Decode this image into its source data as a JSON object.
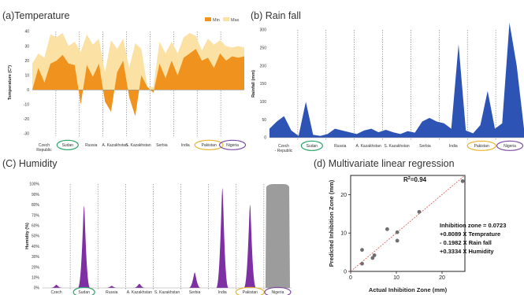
{
  "panel_titles": {
    "a": "(a)Temperature",
    "b": "(b) Rain fall",
    "c": "(C) Humidity",
    "d": "(d) Multivariate linear regression"
  },
  "colors": {
    "temp_min": "#f0921e",
    "temp_max": "#fbe1a3",
    "rain": "#2d53b5",
    "humidity": "#7d2fa3",
    "humidity_nigeria": "#9c9c9c",
    "circle_sudan": "#2aa36a",
    "circle_pakistan": "#e9b32b",
    "circle_nigeria": "#7b4aa3",
    "scatter_point": "#6f6f6f",
    "regression_line": "#d9534f"
  },
  "chart_data": [
    {
      "type": "area",
      "panel": "a",
      "title": "(a)Temperature",
      "ylabel": "Temperature (C°)",
      "ylim": [
        -30,
        40
      ],
      "yticks": [
        -30,
        -20,
        -10,
        0,
        10,
        20,
        30,
        40
      ],
      "legend": [
        "Min",
        "Max"
      ],
      "legend_position": "top-right",
      "regions": [
        "Czech Republic",
        "Sudan",
        "Russia",
        "A. Kazakhstan",
        "S. Kazakhstan",
        "Serbia",
        "India",
        "Pakistan",
        "Nigeria"
      ],
      "region_labels": [
        "Czech\nRepublic",
        "Sudan",
        "Russia",
        "A. Kazakhstan",
        "S. Kazakhstan",
        "Serbia",
        "India",
        "Pakistan",
        "Nigeria"
      ],
      "circled": {
        "Sudan": "circle_sudan",
        "Pakistan": "circle_pakistan",
        "Nigeria": "circle_nigeria"
      },
      "series": [
        {
          "name": "Max",
          "values": [
            18,
            25,
            22,
            38,
            36,
            39,
            30,
            33,
            26,
            38,
            31,
            35,
            12,
            34,
            28,
            35,
            15,
            32,
            28,
            2,
            2,
            33,
            25,
            33,
            25,
            36,
            39,
            37,
            27,
            35,
            31,
            34,
            30,
            29,
            30,
            29
          ]
        },
        {
          "name": "Min",
          "values": [
            0,
            15,
            5,
            18,
            20,
            24,
            18,
            17,
            -10,
            17,
            9,
            18,
            -8,
            -15,
            12,
            20,
            -5,
            -18,
            10,
            2,
            -2,
            18,
            8,
            20,
            10,
            22,
            25,
            28,
            20,
            22,
            15,
            25,
            20,
            23,
            22,
            23
          ]
        }
      ]
    },
    {
      "type": "area",
      "panel": "b",
      "title": "(b) Rain fall",
      "ylabel": "Rainfall (mm)",
      "ylim": [
        0,
        300
      ],
      "yticks": [
        0,
        50,
        100,
        150,
        200,
        250,
        300
      ],
      "regions": [
        "Czech Republic",
        "Sudan",
        "Russia",
        "A. Kazakhstan",
        "S. Kazakhstan",
        "Serbia",
        "India",
        "Pakistan",
        "Nigeria"
      ],
      "region_labels": [
        "Czech\n- Republic",
        "Sudan",
        "Russia",
        "A. Kazakhstan",
        "S. Kazakhstan",
        "Serbia",
        "India",
        "Pakistan",
        "Nigeria"
      ],
      "circled": {
        "Sudan": "circle_sudan",
        "Pakistan": "circle_pakistan",
        "Nigeria": "circle_nigeria"
      },
      "series": [
        {
          "name": "Rainfall",
          "values": [
            25,
            45,
            60,
            20,
            5,
            100,
            8,
            5,
            10,
            25,
            20,
            15,
            10,
            20,
            25,
            15,
            22,
            15,
            10,
            18,
            14,
            45,
            55,
            45,
            40,
            25,
            260,
            20,
            12,
            35,
            130,
            25,
            40,
            320,
            200,
            25
          ]
        }
      ]
    },
    {
      "type": "area",
      "panel": "c",
      "title": "(C) Humidity",
      "ylabel": "Humidity (%)",
      "ylim": [
        0,
        100
      ],
      "yticks": [
        0,
        10,
        20,
        30,
        40,
        50,
        60,
        70,
        80,
        90,
        100
      ],
      "ytick_labels": [
        "0%",
        "10%",
        "20%",
        "30%",
        "40%",
        "50%",
        "60%",
        "70%",
        "80%",
        "90%",
        "100%"
      ],
      "regions": [
        "Czech Republic",
        "Sudan",
        "Russia",
        "A. Kazakhstan",
        "S. Kazakhstan",
        "Serbia",
        "India",
        "Pakistan",
        "Nigeria"
      ],
      "region_labels": [
        "Czech",
        "Sudan",
        "Russia",
        "A. Kazakhstan",
        "S. Kazakhstan",
        "Serbia",
        "India",
        "Pakistan",
        "Nigeria"
      ],
      "circled": {
        "Sudan": "circle_sudan",
        "Pakistan": "circle_pakistan",
        "Nigeria": "circle_nigeria"
      },
      "segments": [
        {
          "region": "Czech Republic",
          "peak": 3
        },
        {
          "region": "Sudan",
          "peak": 79
        },
        {
          "region": "Russia",
          "peak": 2
        },
        {
          "region": "A. Kazakhstan",
          "peak": 4
        },
        {
          "region": "S. Kazakhstan",
          "peak": 0
        },
        {
          "region": "Serbia",
          "peak": 15
        },
        {
          "region": "India",
          "peak": 96
        },
        {
          "region": "Pakistan",
          "peak": 80
        },
        {
          "region": "Nigeria",
          "peak": 100
        }
      ]
    },
    {
      "type": "scatter",
      "panel": "d",
      "title": "(d) Multivariate linear regression",
      "xlabel": "Actual Inhibition Zone (mm)",
      "ylabel": "Predicted Inhibition Zone (mm)",
      "xlim": [
        0,
        25
      ],
      "ylim": [
        0,
        25
      ],
      "xticks": [
        0,
        10,
        20
      ],
      "yticks": [
        0,
        10,
        20
      ],
      "r2": "R²=0.94",
      "r2_main": "R",
      "r2_sup": "2",
      "r2_rest": "=0.94",
      "equation": [
        "Inhibition zone = 0.0723",
        "+0.8089 X Temprature",
        "- 0.1982 X Rain fall",
        "+0.3334 X Humidity"
      ],
      "points": [
        {
          "x": 2.5,
          "y": 2.0
        },
        {
          "x": 2.5,
          "y": 5.6
        },
        {
          "x": 4.8,
          "y": 3.5
        },
        {
          "x": 5.2,
          "y": 4.2
        },
        {
          "x": 8.0,
          "y": 11.0
        },
        {
          "x": 10.2,
          "y": 8.0
        },
        {
          "x": 10.2,
          "y": 10.2
        },
        {
          "x": 15.0,
          "y": 15.5
        },
        {
          "x": 24.5,
          "y": 23.5
        }
      ],
      "fit_line": [
        [
          0,
          0
        ],
        [
          25,
          25
        ]
      ]
    }
  ]
}
